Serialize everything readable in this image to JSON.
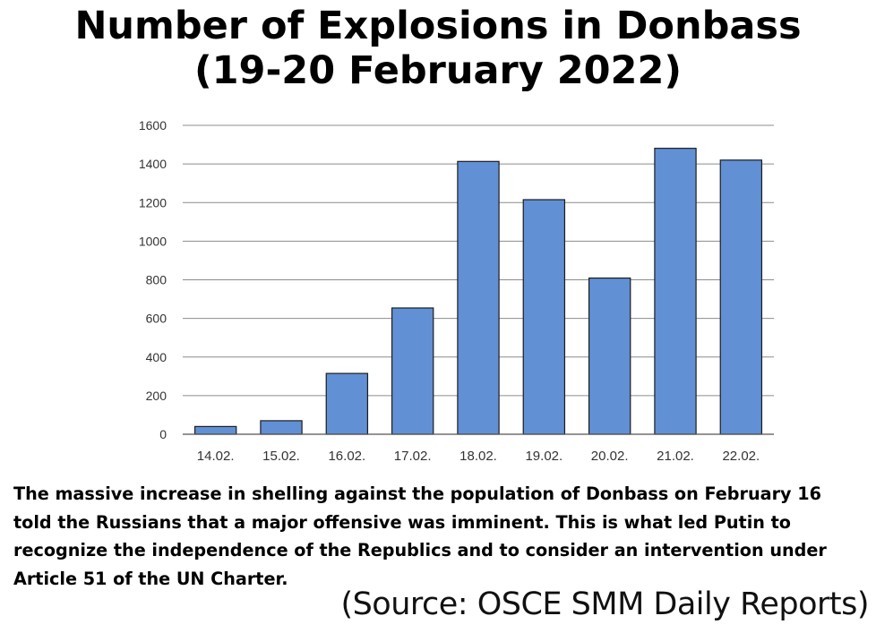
{
  "chart_data": {
    "type": "bar",
    "title_line1": "Number of Explosions in Donbass",
    "title_line2": "(19-20 February 2022)",
    "categories": [
      "14.02.",
      "15.02.",
      "16.02.",
      "17.02.",
      "18.02.",
      "19.02.",
      "20.02.",
      "21.02.",
      "22.02."
    ],
    "values": [
      40,
      70,
      315,
      654,
      1413,
      1215,
      809,
      1481,
      1420
    ],
    "ylim": [
      0,
      1600
    ],
    "yticks": [
      0,
      200,
      400,
      600,
      800,
      1000,
      1200,
      1400,
      1600
    ],
    "bar_color": "#6190d5",
    "grid": true
  },
  "caption": "The massive increase in shelling against the population of Donbass on February 16 told the Russians that a major offensive was imminent. This is what led Putin to recognize the independence of the Republics and to consider an intervention under Article 51 of the UN Charter.",
  "source": "(Source: OSCE SMM Daily Reports)"
}
